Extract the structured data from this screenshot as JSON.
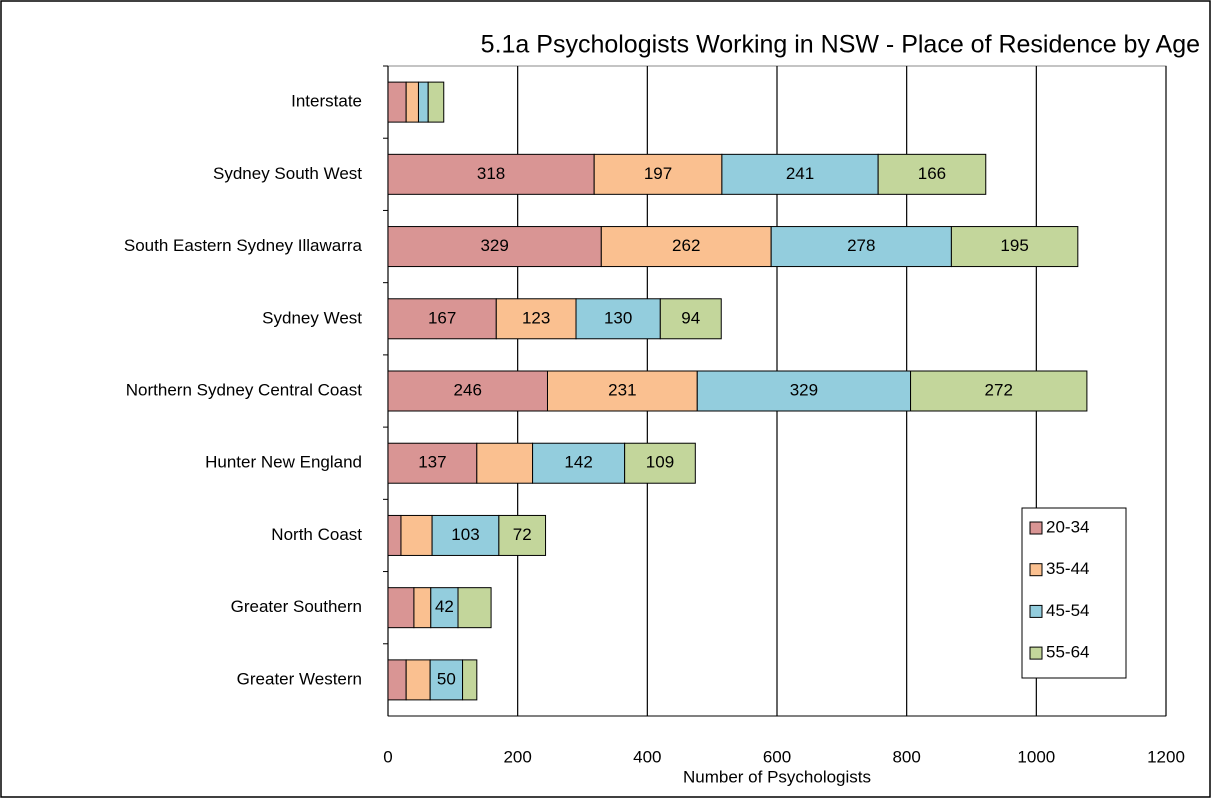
{
  "chart_data": {
    "type": "stacked-bar-horizontal",
    "title": "5.1a Psychologists Working in NSW - Place of Residence by Age",
    "x_label": "Number of Psychologists",
    "categories": [
      "Interstate",
      "Sydney South West",
      "South Eastern Sydney Illawarra",
      "Sydney West",
      "Northern Sydney Central Coast",
      "Hunter New England",
      "North Coast",
      "Greater Southern",
      "Greater Western"
    ],
    "series": [
      {
        "name": "20-34",
        "color": "#d99594",
        "values": [
          28,
          318,
          329,
          167,
          246,
          137,
          20,
          40,
          28
        ],
        "value_labels": [
          null,
          "318",
          "329",
          "167",
          "246",
          "137",
          null,
          null,
          null
        ]
      },
      {
        "name": "35-44",
        "color": "#fac090",
        "values": [
          19,
          197,
          262,
          123,
          231,
          86,
          48,
          26,
          37
        ],
        "value_labels": [
          null,
          "197",
          "262",
          "123",
          "231",
          null,
          null,
          null,
          null
        ]
      },
      {
        "name": "45-54",
        "color": "#93cddd",
        "values": [
          15,
          241,
          278,
          130,
          329,
          142,
          103,
          42,
          50
        ],
        "value_labels": [
          null,
          "241",
          "278",
          "130",
          "329",
          "142",
          "103",
          "42",
          "50"
        ]
      },
      {
        "name": "55-64",
        "color": "#c3d69b",
        "values": [
          24,
          166,
          195,
          94,
          272,
          109,
          72,
          51,
          22
        ],
        "value_labels": [
          null,
          "166",
          "195",
          "94",
          "272",
          "109",
          "72",
          null,
          null
        ]
      }
    ],
    "xlim": [
      0,
      1200
    ],
    "xticks": [
      0,
      200,
      400,
      600,
      800,
      1000,
      1200
    ],
    "grid": true,
    "legend": "lower right"
  }
}
